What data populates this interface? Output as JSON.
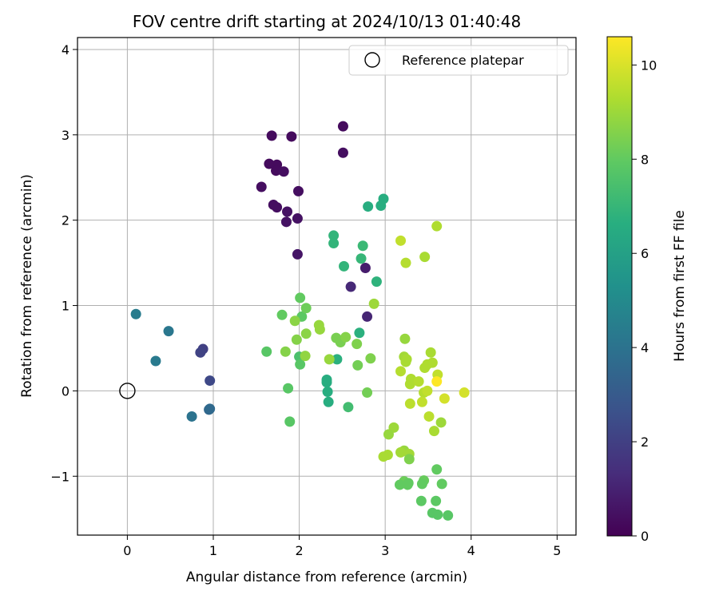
{
  "chart_data": {
    "type": "scatter",
    "title": "FOV centre drift starting at 2024/10/13 01:40:48",
    "xlabel": "Angular distance from reference (arcmin)",
    "ylabel": "Rotation from reference (arcmin)",
    "xlim": [
      -0.58,
      5.22
    ],
    "ylim": [
      -1.69,
      4.14
    ],
    "xticks": [
      0,
      1,
      2,
      3,
      4,
      5
    ],
    "xtick_labels": [
      "0",
      "1",
      "2",
      "3",
      "4",
      "5"
    ],
    "yticks": [
      -1,
      0,
      1,
      2,
      3,
      4
    ],
    "ytick_labels": [
      "−1",
      "0",
      "1",
      "2",
      "3",
      "4"
    ],
    "grid": true,
    "legend": {
      "placement": "top-right",
      "entries": [
        "Reference platepar"
      ]
    },
    "reference_point": {
      "x": 0,
      "y": 0,
      "label": "Reference platepar"
    },
    "colorbar": {
      "label": "Hours from first FF file",
      "min": 0,
      "max": 10.6,
      "ticks": [
        0,
        2,
        4,
        6,
        8,
        10
      ],
      "tick_labels": [
        "0",
        "2",
        "4",
        "6",
        "8",
        "10"
      ],
      "colormap": "viridis"
    },
    "points": [
      {
        "x": 1.68,
        "y": 2.99,
        "t": 0.3
      },
      {
        "x": 1.91,
        "y": 2.98,
        "t": 0.3
      },
      {
        "x": 2.51,
        "y": 3.1,
        "t": 0.3
      },
      {
        "x": 2.51,
        "y": 2.79,
        "t": 0.4
      },
      {
        "x": 1.65,
        "y": 2.66,
        "t": 0.3
      },
      {
        "x": 1.74,
        "y": 2.65,
        "t": 0.3
      },
      {
        "x": 1.73,
        "y": 2.58,
        "t": 0.3
      },
      {
        "x": 1.82,
        "y": 2.57,
        "t": 0.4
      },
      {
        "x": 1.56,
        "y": 2.39,
        "t": 0.4
      },
      {
        "x": 1.99,
        "y": 2.34,
        "t": 0.4
      },
      {
        "x": 1.7,
        "y": 2.18,
        "t": 0.4
      },
      {
        "x": 1.74,
        "y": 2.15,
        "t": 0.4
      },
      {
        "x": 1.86,
        "y": 2.1,
        "t": 0.5
      },
      {
        "x": 1.98,
        "y": 2.02,
        "t": 0.5
      },
      {
        "x": 1.85,
        "y": 1.98,
        "t": 0.5
      },
      {
        "x": 1.98,
        "y": 1.6,
        "t": 0.6
      },
      {
        "x": 2.77,
        "y": 1.44,
        "t": 0.8
      },
      {
        "x": 2.6,
        "y": 1.22,
        "t": 1.2
      },
      {
        "x": 2.79,
        "y": 0.87,
        "t": 1.1
      },
      {
        "x": 0.1,
        "y": 0.9,
        "t": 4.4
      },
      {
        "x": 0.48,
        "y": 0.7,
        "t": 4.2
      },
      {
        "x": 0.33,
        "y": 0.35,
        "t": 4.3
      },
      {
        "x": 0.88,
        "y": 0.49,
        "t": 2.0
      },
      {
        "x": 0.85,
        "y": 0.45,
        "t": 2.1
      },
      {
        "x": 0.96,
        "y": 0.12,
        "t": 2.3
      },
      {
        "x": 0.75,
        "y": -0.3,
        "t": 4.0
      },
      {
        "x": 0.95,
        "y": -0.22,
        "t": 3.5
      },
      {
        "x": 0.96,
        "y": -0.21,
        "t": 3.6
      },
      {
        "x": 2.98,
        "y": 2.25,
        "t": 6.6
      },
      {
        "x": 2.95,
        "y": 2.17,
        "t": 6.6
      },
      {
        "x": 2.8,
        "y": 2.16,
        "t": 6.6
      },
      {
        "x": 2.4,
        "y": 1.82,
        "t": 6.9
      },
      {
        "x": 2.4,
        "y": 1.73,
        "t": 6.9
      },
      {
        "x": 2.74,
        "y": 1.7,
        "t": 7.1
      },
      {
        "x": 2.72,
        "y": 1.55,
        "t": 7.0
      },
      {
        "x": 2.52,
        "y": 1.46,
        "t": 6.9
      },
      {
        "x": 2.9,
        "y": 1.28,
        "t": 6.8
      },
      {
        "x": 2.7,
        "y": 0.68,
        "t": 6.7
      },
      {
        "x": 2.44,
        "y": 0.37,
        "t": 6.7
      },
      {
        "x": 2.32,
        "y": 0.1,
        "t": 6.6
      },
      {
        "x": 2.32,
        "y": 0.13,
        "t": 6.6
      },
      {
        "x": 2.33,
        "y": -0.01,
        "t": 6.6
      },
      {
        "x": 2.34,
        "y": -0.13,
        "t": 6.6
      },
      {
        "x": 2.57,
        "y": -0.19,
        "t": 7.3
      },
      {
        "x": 2.0,
        "y": 0.4,
        "t": 7.5
      },
      {
        "x": 2.01,
        "y": 0.31,
        "t": 7.8
      },
      {
        "x": 1.62,
        "y": 0.46,
        "t": 7.8
      },
      {
        "x": 1.87,
        "y": 0.03,
        "t": 7.8
      },
      {
        "x": 1.89,
        "y": -0.36,
        "t": 7.8
      },
      {
        "x": 2.01,
        "y": 1.09,
        "t": 8.0
      },
      {
        "x": 2.03,
        "y": 0.87,
        "t": 7.9
      },
      {
        "x": 1.8,
        "y": 0.89,
        "t": 8.0
      },
      {
        "x": 2.08,
        "y": 0.97,
        "t": 8.2
      },
      {
        "x": 1.97,
        "y": 0.6,
        "t": 8.6
      },
      {
        "x": 1.95,
        "y": 0.82,
        "t": 8.7
      },
      {
        "x": 2.08,
        "y": 0.67,
        "t": 8.7
      },
      {
        "x": 2.23,
        "y": 0.77,
        "t": 8.9
      },
      {
        "x": 2.24,
        "y": 0.72,
        "t": 8.9
      },
      {
        "x": 1.84,
        "y": 0.46,
        "t": 8.6
      },
      {
        "x": 2.07,
        "y": 0.41,
        "t": 8.8
      },
      {
        "x": 2.35,
        "y": 0.37,
        "t": 8.9
      },
      {
        "x": 2.43,
        "y": 0.62,
        "t": 8.4
      },
      {
        "x": 2.48,
        "y": 0.57,
        "t": 8.4
      },
      {
        "x": 2.54,
        "y": 0.63,
        "t": 8.6
      },
      {
        "x": 2.67,
        "y": 0.55,
        "t": 8.5
      },
      {
        "x": 2.68,
        "y": 0.3,
        "t": 8.3
      },
      {
        "x": 2.83,
        "y": 0.38,
        "t": 8.5
      },
      {
        "x": 2.87,
        "y": 1.02,
        "t": 9.0
      },
      {
        "x": 2.79,
        "y": -0.02,
        "t": 8.3
      },
      {
        "x": 3.18,
        "y": 1.76,
        "t": 9.6
      },
      {
        "x": 3.24,
        "y": 1.5,
        "t": 9.4
      },
      {
        "x": 3.6,
        "y": 1.93,
        "t": 9.3
      },
      {
        "x": 3.46,
        "y": 1.57,
        "t": 9.2
      },
      {
        "x": 3.23,
        "y": 0.61,
        "t": 8.9
      },
      {
        "x": 3.22,
        "y": 0.4,
        "t": 9.1
      },
      {
        "x": 3.25,
        "y": 0.37,
        "t": 9.2
      },
      {
        "x": 3.24,
        "y": 0.34,
        "t": 9.2
      },
      {
        "x": 3.18,
        "y": 0.23,
        "t": 9.4
      },
      {
        "x": 3.3,
        "y": 0.14,
        "t": 9.3
      },
      {
        "x": 3.29,
        "y": 0.08,
        "t": 9.3
      },
      {
        "x": 3.39,
        "y": 0.11,
        "t": 9.4
      },
      {
        "x": 3.46,
        "y": 0.27,
        "t": 9.3
      },
      {
        "x": 3.49,
        "y": 0.31,
        "t": 9.3
      },
      {
        "x": 3.53,
        "y": 0.45,
        "t": 9.2
      },
      {
        "x": 3.55,
        "y": 0.33,
        "t": 9.3
      },
      {
        "x": 3.61,
        "y": 0.19,
        "t": 9.6
      },
      {
        "x": 3.6,
        "y": 0.11,
        "t": 10.6
      },
      {
        "x": 3.45,
        "y": -0.02,
        "t": 9.4
      },
      {
        "x": 3.49,
        "y": 0.0,
        "t": 9.6
      },
      {
        "x": 3.43,
        "y": -0.13,
        "t": 9.6
      },
      {
        "x": 3.29,
        "y": -0.15,
        "t": 9.5
      },
      {
        "x": 3.69,
        "y": -0.09,
        "t": 9.9
      },
      {
        "x": 3.92,
        "y": -0.02,
        "t": 9.9
      },
      {
        "x": 3.51,
        "y": -0.3,
        "t": 9.5
      },
      {
        "x": 3.57,
        "y": -0.47,
        "t": 9.2
      },
      {
        "x": 3.65,
        "y": -0.37,
        "t": 9.0
      },
      {
        "x": 3.1,
        "y": -0.43,
        "t": 9.0
      },
      {
        "x": 3.04,
        "y": -0.51,
        "t": 8.9
      },
      {
        "x": 3.22,
        "y": -0.7,
        "t": 8.9
      },
      {
        "x": 3.18,
        "y": -0.72,
        "t": 9.1
      },
      {
        "x": 3.28,
        "y": -0.74,
        "t": 9.1
      },
      {
        "x": 3.03,
        "y": -0.75,
        "t": 9.2
      },
      {
        "x": 2.98,
        "y": -0.77,
        "t": 9.2
      },
      {
        "x": 3.28,
        "y": -0.8,
        "t": 8.5
      },
      {
        "x": 3.6,
        "y": -0.92,
        "t": 8.0
      },
      {
        "x": 3.22,
        "y": -1.06,
        "t": 8.2
      },
      {
        "x": 3.17,
        "y": -1.1,
        "t": 8.0
      },
      {
        "x": 3.26,
        "y": -1.1,
        "t": 8.0
      },
      {
        "x": 3.27,
        "y": -1.08,
        "t": 8.0
      },
      {
        "x": 3.45,
        "y": -1.05,
        "t": 8.1
      },
      {
        "x": 3.43,
        "y": -1.09,
        "t": 8.0
      },
      {
        "x": 3.66,
        "y": -1.09,
        "t": 8.0
      },
      {
        "x": 3.59,
        "y": -1.29,
        "t": 7.9
      },
      {
        "x": 3.42,
        "y": -1.29,
        "t": 7.9
      },
      {
        "x": 3.55,
        "y": -1.43,
        "t": 7.8
      },
      {
        "x": 3.61,
        "y": -1.45,
        "t": 7.8
      },
      {
        "x": 3.73,
        "y": -1.46,
        "t": 7.8
      }
    ]
  }
}
